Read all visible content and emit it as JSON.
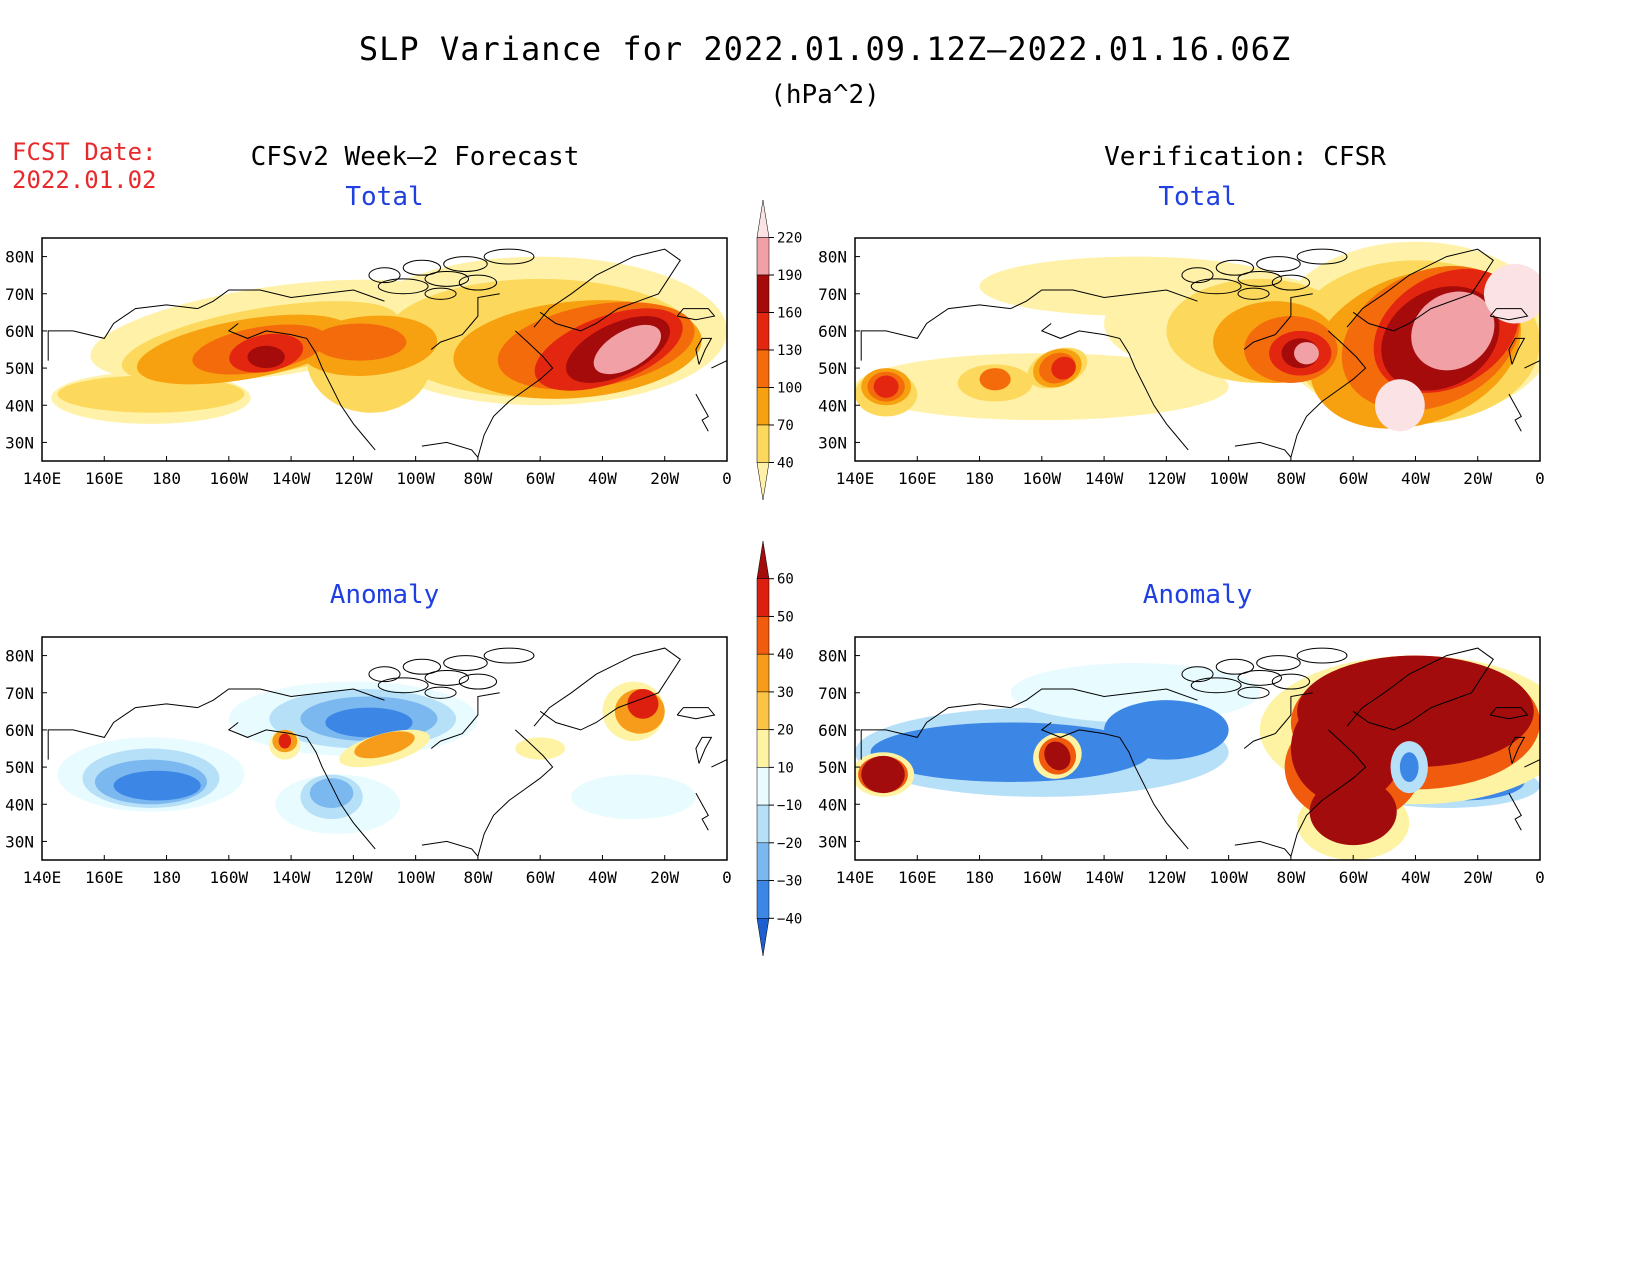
{
  "title": "SLP Variance for 2022.01.09.12Z–2022.01.16.06Z",
  "units": "(hPa^2)",
  "forecast_date_label": "FCST Date:",
  "forecast_date": "2022.01.02",
  "left_heading": "CFSv2 Week–2 Forecast",
  "right_heading": "Verification: CFSR",
  "panels": [
    {
      "title": "Total",
      "field": "total",
      "source": "forecast"
    },
    {
      "title": "Total",
      "field": "total",
      "source": "verification"
    },
    {
      "title": "Anomaly",
      "field": "anomaly",
      "source": "forecast"
    },
    {
      "title": "Anomaly",
      "field": "anomaly",
      "source": "verification"
    }
  ],
  "axes": {
    "lon_labels": [
      "140E",
      "160E",
      "180",
      "160W",
      "140W",
      "120W",
      "100W",
      "80W",
      "60W",
      "40W",
      "20W",
      "0"
    ],
    "lat_labels": [
      "80N",
      "70N",
      "60N",
      "50N",
      "40N",
      "30N"
    ]
  },
  "colorbars": {
    "total": {
      "levels": [
        "40",
        "70",
        "100",
        "130",
        "160",
        "190",
        "220"
      ],
      "colors": [
        "#fff2a8",
        "#fcd95c",
        "#f7a010",
        "#f46b0c",
        "#e3260f",
        "#a50b0b",
        "#f1a0a5",
        "#fbe2e4"
      ]
    },
    "anomaly": {
      "levels": [
        "60",
        "50",
        "40",
        "30",
        "20",
        "10",
        "−10",
        "−20",
        "−30",
        "−40"
      ],
      "colors": [
        "#a30c0c",
        "#dd1f10",
        "#f15b0d",
        "#f79c1a",
        "#fcc447",
        "#fdf3a2",
        "#e8fbff",
        "#b6e0f8",
        "#7bb8f0",
        "#3c86e6",
        "#1d5fd0"
      ]
    }
  },
  "colors": {
    "panel_title": "#1f3fe0",
    "fcst_text": "#e8292b"
  }
}
